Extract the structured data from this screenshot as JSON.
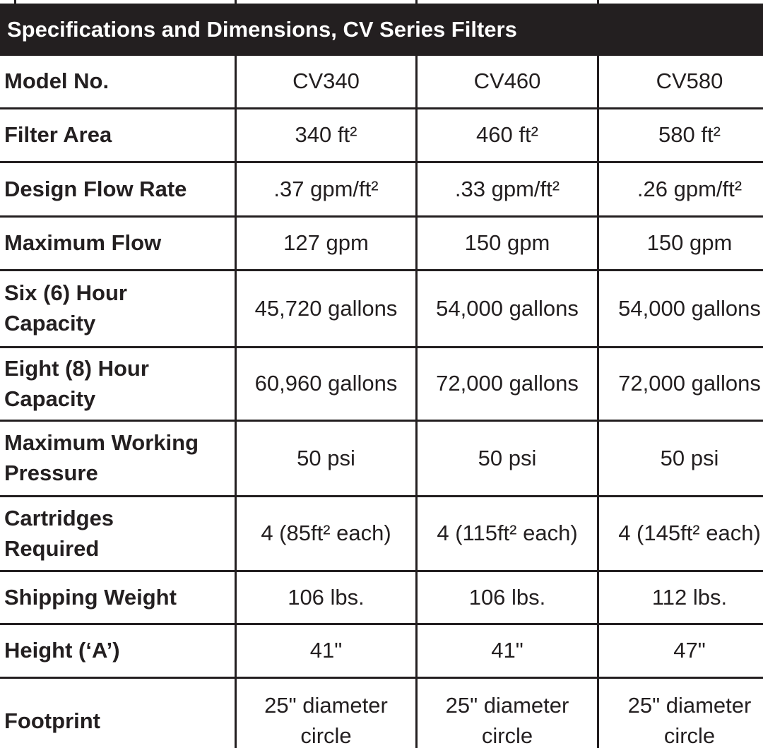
{
  "colors": {
    "bar_background": "#231f20",
    "bar_text": "#ffffff",
    "border": "#231f20",
    "text": "#231f20",
    "page_background": "#ffffff"
  },
  "title": "Specifications and Dimensions, CV Series Filters",
  "table": {
    "rows": [
      {
        "label": "Model No.",
        "values": [
          "CV340",
          "CV460",
          "CV580"
        ]
      },
      {
        "label": "Filter Area",
        "values": [
          "340 ft²",
          "460 ft²",
          "580 ft²"
        ]
      },
      {
        "label": "Design Flow Rate",
        "values": [
          ".37 gpm/ft²",
          ".33 gpm/ft²",
          ".26 gpm/ft²"
        ]
      },
      {
        "label": "Maximum Flow",
        "values": [
          "127 gpm",
          "150 gpm",
          "150 gpm"
        ]
      },
      {
        "label": [
          "Six (6) Hour",
          "Capacity"
        ],
        "values": [
          "45,720 gallons",
          "54,000 gallons",
          "54,000 gallons"
        ]
      },
      {
        "label": [
          "Eight (8) Hour",
          "Capacity"
        ],
        "values": [
          "60,960 gallons",
          "72,000 gallons",
          "72,000 gallons"
        ]
      },
      {
        "label": [
          "Maximum Working",
          "Pressure"
        ],
        "values": [
          "50 psi",
          "50 psi",
          "50 psi"
        ]
      },
      {
        "label": [
          "Cartridges",
          "Required"
        ],
        "values": [
          "4 (85ft² each)",
          "4 (115ft² each)",
          "4 (145ft² each)"
        ]
      },
      {
        "label": "Shipping Weight",
        "values": [
          "106 lbs.",
          "106 lbs.",
          "112 lbs."
        ]
      },
      {
        "label": "Height (‘A’)",
        "values": [
          "41\"",
          "41\"",
          "47\""
        ]
      },
      {
        "label": "Footprint",
        "values": [
          [
            "25\" diameter",
            "circle"
          ],
          [
            "25\" diameter",
            "circle"
          ],
          [
            "25\" diameter",
            "circle"
          ]
        ]
      }
    ]
  }
}
